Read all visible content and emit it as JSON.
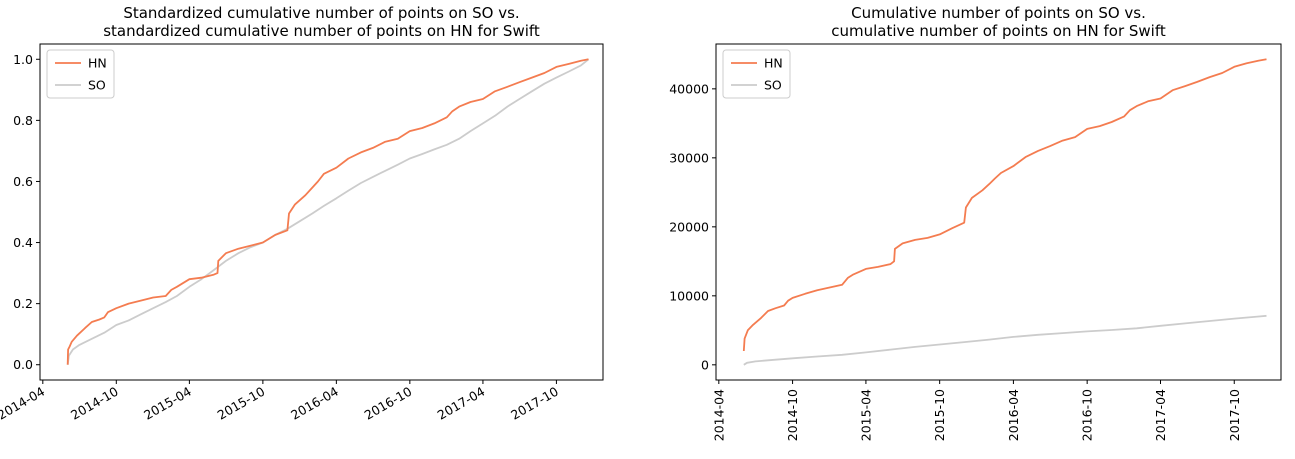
{
  "chart_data": [
    {
      "type": "line",
      "title_lines": [
        "Standardized cumulative number of points on SO vs.",
        "standardized cumulative number of points on HN for Swift"
      ],
      "xlabel": "",
      "ylabel": "",
      "x_ticks": [
        "2014-04",
        "2014-10",
        "2015-04",
        "2015-10",
        "2016-04",
        "2016-10",
        "2017-04",
        "2017-10"
      ],
      "x_tick_rotation": 30,
      "y_ticks": [
        0.0,
        0.2,
        0.4,
        0.6,
        0.8,
        1.0
      ],
      "y_tick_labels": [
        "0.0",
        "0.2",
        "0.4",
        "0.6",
        "0.8",
        "1.0"
      ],
      "xlim": [
        "2014-03-25",
        "2018-01-25"
      ],
      "ylim": [
        -0.05,
        1.05
      ],
      "grid": false,
      "legend": "top-left",
      "series": [
        {
          "name": "HN",
          "color": "#f47c50",
          "points": [
            [
              "2014-06-02",
              0.0
            ],
            [
              "2014-06-03",
              0.05
            ],
            [
              "2014-06-07",
              0.06
            ],
            [
              "2014-06-12",
              0.075
            ],
            [
              "2014-06-25",
              0.095
            ],
            [
              "2014-07-15",
              0.12
            ],
            [
              "2014-08-01",
              0.14
            ],
            [
              "2014-08-20",
              0.148
            ],
            [
              "2014-09-01",
              0.155
            ],
            [
              "2014-09-10",
              0.172
            ],
            [
              "2014-10-01",
              0.185
            ],
            [
              "2014-11-01",
              0.2
            ],
            [
              "2014-12-01",
              0.21
            ],
            [
              "2015-01-01",
              0.22
            ],
            [
              "2015-02-01",
              0.225
            ],
            [
              "2015-02-15",
              0.245
            ],
            [
              "2015-03-01",
              0.255
            ],
            [
              "2015-04-01",
              0.28
            ],
            [
              "2015-05-01",
              0.285
            ],
            [
              "2015-06-01",
              0.295
            ],
            [
              "2015-06-10",
              0.3
            ],
            [
              "2015-06-12",
              0.34
            ],
            [
              "2015-07-01",
              0.365
            ],
            [
              "2015-08-01",
              0.38
            ],
            [
              "2015-09-01",
              0.39
            ],
            [
              "2015-10-01",
              0.4
            ],
            [
              "2015-11-01",
              0.425
            ],
            [
              "2015-12-01",
              0.44
            ],
            [
              "2015-12-05",
              0.495
            ],
            [
              "2015-12-20",
              0.525
            ],
            [
              "2016-01-15",
              0.555
            ],
            [
              "2016-02-01",
              0.58
            ],
            [
              "2016-02-15",
              0.6
            ],
            [
              "2016-03-01",
              0.625
            ],
            [
              "2016-04-01",
              0.645
            ],
            [
              "2016-05-01",
              0.675
            ],
            [
              "2016-06-01",
              0.695
            ],
            [
              "2016-07-01",
              0.71
            ],
            [
              "2016-08-01",
              0.73
            ],
            [
              "2016-09-01",
              0.74
            ],
            [
              "2016-10-01",
              0.765
            ],
            [
              "2016-11-01",
              0.775
            ],
            [
              "2016-12-01",
              0.79
            ],
            [
              "2017-01-01",
              0.81
            ],
            [
              "2017-01-15",
              0.83
            ],
            [
              "2017-02-01",
              0.845
            ],
            [
              "2017-03-01",
              0.86
            ],
            [
              "2017-04-01",
              0.87
            ],
            [
              "2017-05-01",
              0.895
            ],
            [
              "2017-06-01",
              0.91
            ],
            [
              "2017-07-01",
              0.925
            ],
            [
              "2017-08-01",
              0.94
            ],
            [
              "2017-09-01",
              0.955
            ],
            [
              "2017-10-01",
              0.975
            ],
            [
              "2017-11-01",
              0.985
            ],
            [
              "2017-12-01",
              0.995
            ],
            [
              "2017-12-20",
              1.0
            ]
          ]
        },
        {
          "name": "SO",
          "color": "#cccccc",
          "points": [
            [
              "2014-06-02",
              0.0
            ],
            [
              "2014-06-05",
              0.03
            ],
            [
              "2014-06-15",
              0.05
            ],
            [
              "2014-07-01",
              0.065
            ],
            [
              "2014-08-01",
              0.085
            ],
            [
              "2014-09-01",
              0.105
            ],
            [
              "2014-10-01",
              0.13
            ],
            [
              "2014-11-01",
              0.145
            ],
            [
              "2014-12-01",
              0.165
            ],
            [
              "2015-01-01",
              0.185
            ],
            [
              "2015-02-01",
              0.205
            ],
            [
              "2015-03-01",
              0.225
            ],
            [
              "2015-04-01",
              0.255
            ],
            [
              "2015-05-01",
              0.28
            ],
            [
              "2015-06-01",
              0.31
            ],
            [
              "2015-07-01",
              0.34
            ],
            [
              "2015-08-01",
              0.365
            ],
            [
              "2015-09-01",
              0.385
            ],
            [
              "2015-10-01",
              0.4
            ],
            [
              "2015-11-01",
              0.425
            ],
            [
              "2015-12-01",
              0.445
            ],
            [
              "2016-01-01",
              0.47
            ],
            [
              "2016-02-01",
              0.495
            ],
            [
              "2016-03-01",
              0.52
            ],
            [
              "2016-04-01",
              0.545
            ],
            [
              "2016-05-01",
              0.57
            ],
            [
              "2016-06-01",
              0.595
            ],
            [
              "2016-07-01",
              0.615
            ],
            [
              "2016-08-01",
              0.635
            ],
            [
              "2016-09-01",
              0.655
            ],
            [
              "2016-10-01",
              0.675
            ],
            [
              "2016-11-01",
              0.69
            ],
            [
              "2016-12-01",
              0.705
            ],
            [
              "2017-01-01",
              0.72
            ],
            [
              "2017-02-01",
              0.74
            ],
            [
              "2017-03-01",
              0.765
            ],
            [
              "2017-04-01",
              0.79
            ],
            [
              "2017-05-01",
              0.815
            ],
            [
              "2017-06-01",
              0.845
            ],
            [
              "2017-07-01",
              0.87
            ],
            [
              "2017-08-01",
              0.895
            ],
            [
              "2017-09-01",
              0.92
            ],
            [
              "2017-10-01",
              0.94
            ],
            [
              "2017-11-01",
              0.96
            ],
            [
              "2017-12-01",
              0.98
            ],
            [
              "2017-12-20",
              1.0
            ]
          ]
        }
      ]
    },
    {
      "type": "line",
      "title_lines": [
        "Cumulative number of points on SO vs.",
        "cumulative number of points on HN for Swift"
      ],
      "xlabel": "",
      "ylabel": "",
      "x_ticks": [
        "2014-04",
        "2014-10",
        "2015-04",
        "2015-10",
        "2016-04",
        "2016-10",
        "2017-04",
        "2017-10"
      ],
      "x_tick_rotation": 90,
      "y_ticks": [
        0,
        10000,
        20000,
        30000,
        40000
      ],
      "y_tick_labels": [
        "0",
        "10000",
        "20000",
        "30000",
        "40000"
      ],
      "xlim": [
        "2014-03-25",
        "2018-01-25"
      ],
      "ylim": [
        -2200,
        46500
      ],
      "grid": false,
      "legend": "top-left",
      "series": [
        {
          "name": "HN",
          "color": "#f47c50",
          "points": [
            [
              "2014-06-02",
              2000
            ],
            [
              "2014-06-04",
              3800
            ],
            [
              "2014-06-12",
              5000
            ],
            [
              "2014-06-25",
              5800
            ],
            [
              "2014-07-15",
              6800
            ],
            [
              "2014-08-01",
              7800
            ],
            [
              "2014-08-20",
              8200
            ],
            [
              "2014-09-10",
              8600
            ],
            [
              "2014-09-20",
              9300
            ],
            [
              "2014-10-01",
              9700
            ],
            [
              "2014-11-01",
              10300
            ],
            [
              "2014-12-01",
              10800
            ],
            [
              "2015-01-01",
              11200
            ],
            [
              "2015-02-01",
              11600
            ],
            [
              "2015-02-15",
              12600
            ],
            [
              "2015-03-01",
              13100
            ],
            [
              "2015-04-01",
              13900
            ],
            [
              "2015-05-01",
              14200
            ],
            [
              "2015-06-01",
              14600
            ],
            [
              "2015-06-10",
              15000
            ],
            [
              "2015-06-12",
              16800
            ],
            [
              "2015-07-01",
              17600
            ],
            [
              "2015-08-01",
              18100
            ],
            [
              "2015-09-01",
              18400
            ],
            [
              "2015-10-01",
              18900
            ],
            [
              "2015-11-01",
              19800
            ],
            [
              "2015-12-01",
              20600
            ],
            [
              "2015-12-05",
              22800
            ],
            [
              "2015-12-20",
              24200
            ],
            [
              "2016-01-15",
              25300
            ],
            [
              "2016-02-01",
              26200
            ],
            [
              "2016-02-15",
              27000
            ],
            [
              "2016-03-01",
              27800
            ],
            [
              "2016-04-01",
              28800
            ],
            [
              "2016-05-01",
              30100
            ],
            [
              "2016-06-01",
              31000
            ],
            [
              "2016-07-01",
              31700
            ],
            [
              "2016-08-01",
              32500
            ],
            [
              "2016-09-01",
              33000
            ],
            [
              "2016-10-01",
              34200
            ],
            [
              "2016-11-01",
              34600
            ],
            [
              "2016-12-01",
              35200
            ],
            [
              "2017-01-01",
              36000
            ],
            [
              "2017-01-15",
              36900
            ],
            [
              "2017-02-01",
              37500
            ],
            [
              "2017-03-01",
              38200
            ],
            [
              "2017-04-01",
              38600
            ],
            [
              "2017-05-01",
              39800
            ],
            [
              "2017-06-01",
              40400
            ],
            [
              "2017-07-01",
              41000
            ],
            [
              "2017-08-01",
              41700
            ],
            [
              "2017-09-01",
              42300
            ],
            [
              "2017-10-01",
              43200
            ],
            [
              "2017-11-01",
              43700
            ],
            [
              "2017-12-01",
              44100
            ],
            [
              "2017-12-20",
              44300
            ]
          ]
        },
        {
          "name": "SO",
          "color": "#cccccc",
          "points": [
            [
              "2014-06-02",
              0
            ],
            [
              "2014-06-10",
              300
            ],
            [
              "2014-07-01",
              500
            ],
            [
              "2014-08-01",
              650
            ],
            [
              "2014-10-01",
              950
            ],
            [
              "2014-12-01",
              1200
            ],
            [
              "2015-02-01",
              1450
            ],
            [
              "2015-04-01",
              1800
            ],
            [
              "2015-06-01",
              2200
            ],
            [
              "2015-08-01",
              2600
            ],
            [
              "2015-10-01",
              2950
            ],
            [
              "2015-12-01",
              3300
            ],
            [
              "2016-02-01",
              3650
            ],
            [
              "2016-04-01",
              4050
            ],
            [
              "2016-06-01",
              4350
            ],
            [
              "2016-08-01",
              4600
            ],
            [
              "2016-10-01",
              4850
            ],
            [
              "2016-12-01",
              5050
            ],
            [
              "2017-02-01",
              5300
            ],
            [
              "2017-04-01",
              5650
            ],
            [
              "2017-06-01",
              6000
            ],
            [
              "2017-08-01",
              6350
            ],
            [
              "2017-10-01",
              6700
            ],
            [
              "2017-12-01",
              7000
            ],
            [
              "2017-12-20",
              7100
            ]
          ]
        }
      ]
    }
  ]
}
